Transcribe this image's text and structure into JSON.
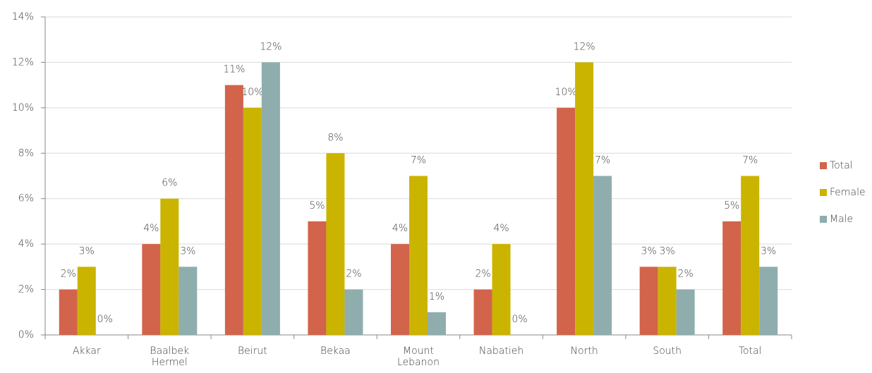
{
  "chart_data": {
    "type": "bar",
    "categories": [
      "Akkar",
      "Baalbek Hermel",
      "Beirut",
      "Bekaa",
      "Mount Lebanon",
      "Nabatieh",
      "North",
      "South",
      "Total"
    ],
    "series": [
      {
        "name": "Total",
        "color": "#d2644b",
        "values": [
          2,
          4,
          11,
          5,
          4,
          2,
          10,
          3,
          5
        ],
        "value_labels": [
          "2%",
          "4%",
          "11%",
          "5%",
          "4%",
          "2%",
          "10%",
          "3%",
          "5%"
        ]
      },
      {
        "name": "Female",
        "color": "#cbb400",
        "values": [
          3,
          6,
          10,
          8,
          7,
          4,
          12,
          3,
          7
        ],
        "value_labels": [
          "3%",
          "6%",
          "10%",
          "8%",
          "7%",
          "4%",
          "12%",
          "3%",
          "7%"
        ]
      },
      {
        "name": "Male",
        "color": "#8fadad",
        "values": [
          0,
          3,
          12,
          2,
          1,
          0,
          7,
          2,
          3
        ],
        "value_labels": [
          "0%",
          "3%",
          "12%",
          "2%",
          "1%",
          "0%",
          "7%",
          "2%",
          "3%"
        ]
      }
    ],
    "ylim": [
      0,
      14
    ],
    "yticks": [
      {
        "value": 0,
        "label": "0%"
      },
      {
        "value": 2,
        "label": "2%"
      },
      {
        "value": 4,
        "label": "4%"
      },
      {
        "value": 6,
        "label": "6%"
      },
      {
        "value": 8,
        "label": "8%"
      },
      {
        "value": 10,
        "label": "10%"
      },
      {
        "value": 12,
        "label": "12%"
      },
      {
        "value": 14,
        "label": "14%"
      }
    ],
    "grid": true,
    "legend": "right"
  }
}
